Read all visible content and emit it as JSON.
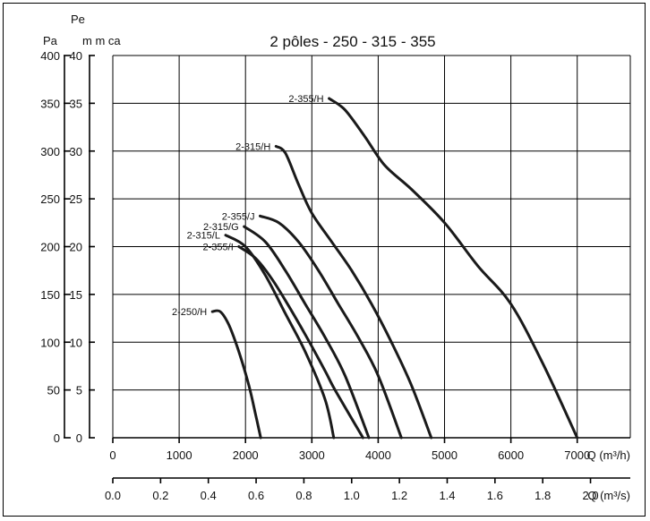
{
  "chart_data": {
    "type": "line",
    "title": "2 pôles - 250 - 315 - 355",
    "ylabel_group": "Pe",
    "ylabel_pa": "Pa",
    "ylabel_mmca": "m m ca",
    "y_pa_ticks": [
      "0",
      "50",
      "100",
      "150",
      "200",
      "250",
      "300",
      "350",
      "400"
    ],
    "y_mmca_ticks": [
      "0",
      "5",
      "10",
      "15",
      "20",
      "25",
      "30",
      "35",
      "40"
    ],
    "ylim_pa": [
      0,
      400
    ],
    "x_m3h_ticks": [
      "0",
      "1000",
      "2000",
      "3000",
      "4000",
      "5000",
      "6000",
      "7000"
    ],
    "x_m3h_label": "Q (m³/h)",
    "xlim_m3h": [
      0,
      7800
    ],
    "x_m3s_ticks": [
      "0.0",
      "0.2",
      "0.4",
      "0.6",
      "0.8",
      "1.0",
      "1.2",
      "1.4",
      "1.6",
      "1.8",
      "2.0"
    ],
    "x_m3s_label": "Q (m³/s)",
    "grid": true,
    "series": [
      {
        "name": "2-355/H",
        "x": [
          3260,
          3500,
          3800,
          4100,
          4500,
          5000,
          5500,
          6000,
          6500,
          7000
        ],
        "y": [
          355,
          343,
          315,
          285,
          260,
          225,
          180,
          140,
          75,
          0
        ]
      },
      {
        "name": "2-315/H",
        "x": [
          2460,
          2600,
          2800,
          3000,
          3300,
          3600,
          3900,
          4200,
          4500,
          4800
        ],
        "y": [
          305,
          298,
          265,
          235,
          205,
          175,
          140,
          100,
          55,
          0
        ]
      },
      {
        "name": "2-355/J",
        "x": [
          2220,
          2500,
          2800,
          3100,
          3400,
          3700,
          4000,
          4350
        ],
        "y": [
          232,
          225,
          205,
          175,
          140,
          105,
          65,
          0
        ]
      },
      {
        "name": "2-315/G",
        "x": [
          1980,
          2300,
          2600,
          2900,
          3200,
          3500,
          3860
        ],
        "y": [
          221,
          205,
          175,
          140,
          105,
          65,
          0
        ]
      },
      {
        "name": "2-315/L",
        "x": [
          1700,
          2000,
          2300,
          2600,
          2900,
          3200,
          3330
        ],
        "y": [
          212,
          200,
          170,
          130,
          90,
          40,
          0
        ]
      },
      {
        "name": "2-355/I",
        "x": [
          1900,
          2150,
          2400,
          2650,
          2900,
          3200,
          3350,
          3770
        ],
        "y": [
          200,
          188,
          166,
          138,
          108,
          70,
          50,
          0
        ]
      },
      {
        "name": "2-250/H",
        "x": [
          1500,
          1620,
          1750,
          1900,
          2050,
          2150,
          2230
        ],
        "y": [
          132,
          132,
          118,
          90,
          55,
          25,
          0
        ]
      }
    ]
  }
}
